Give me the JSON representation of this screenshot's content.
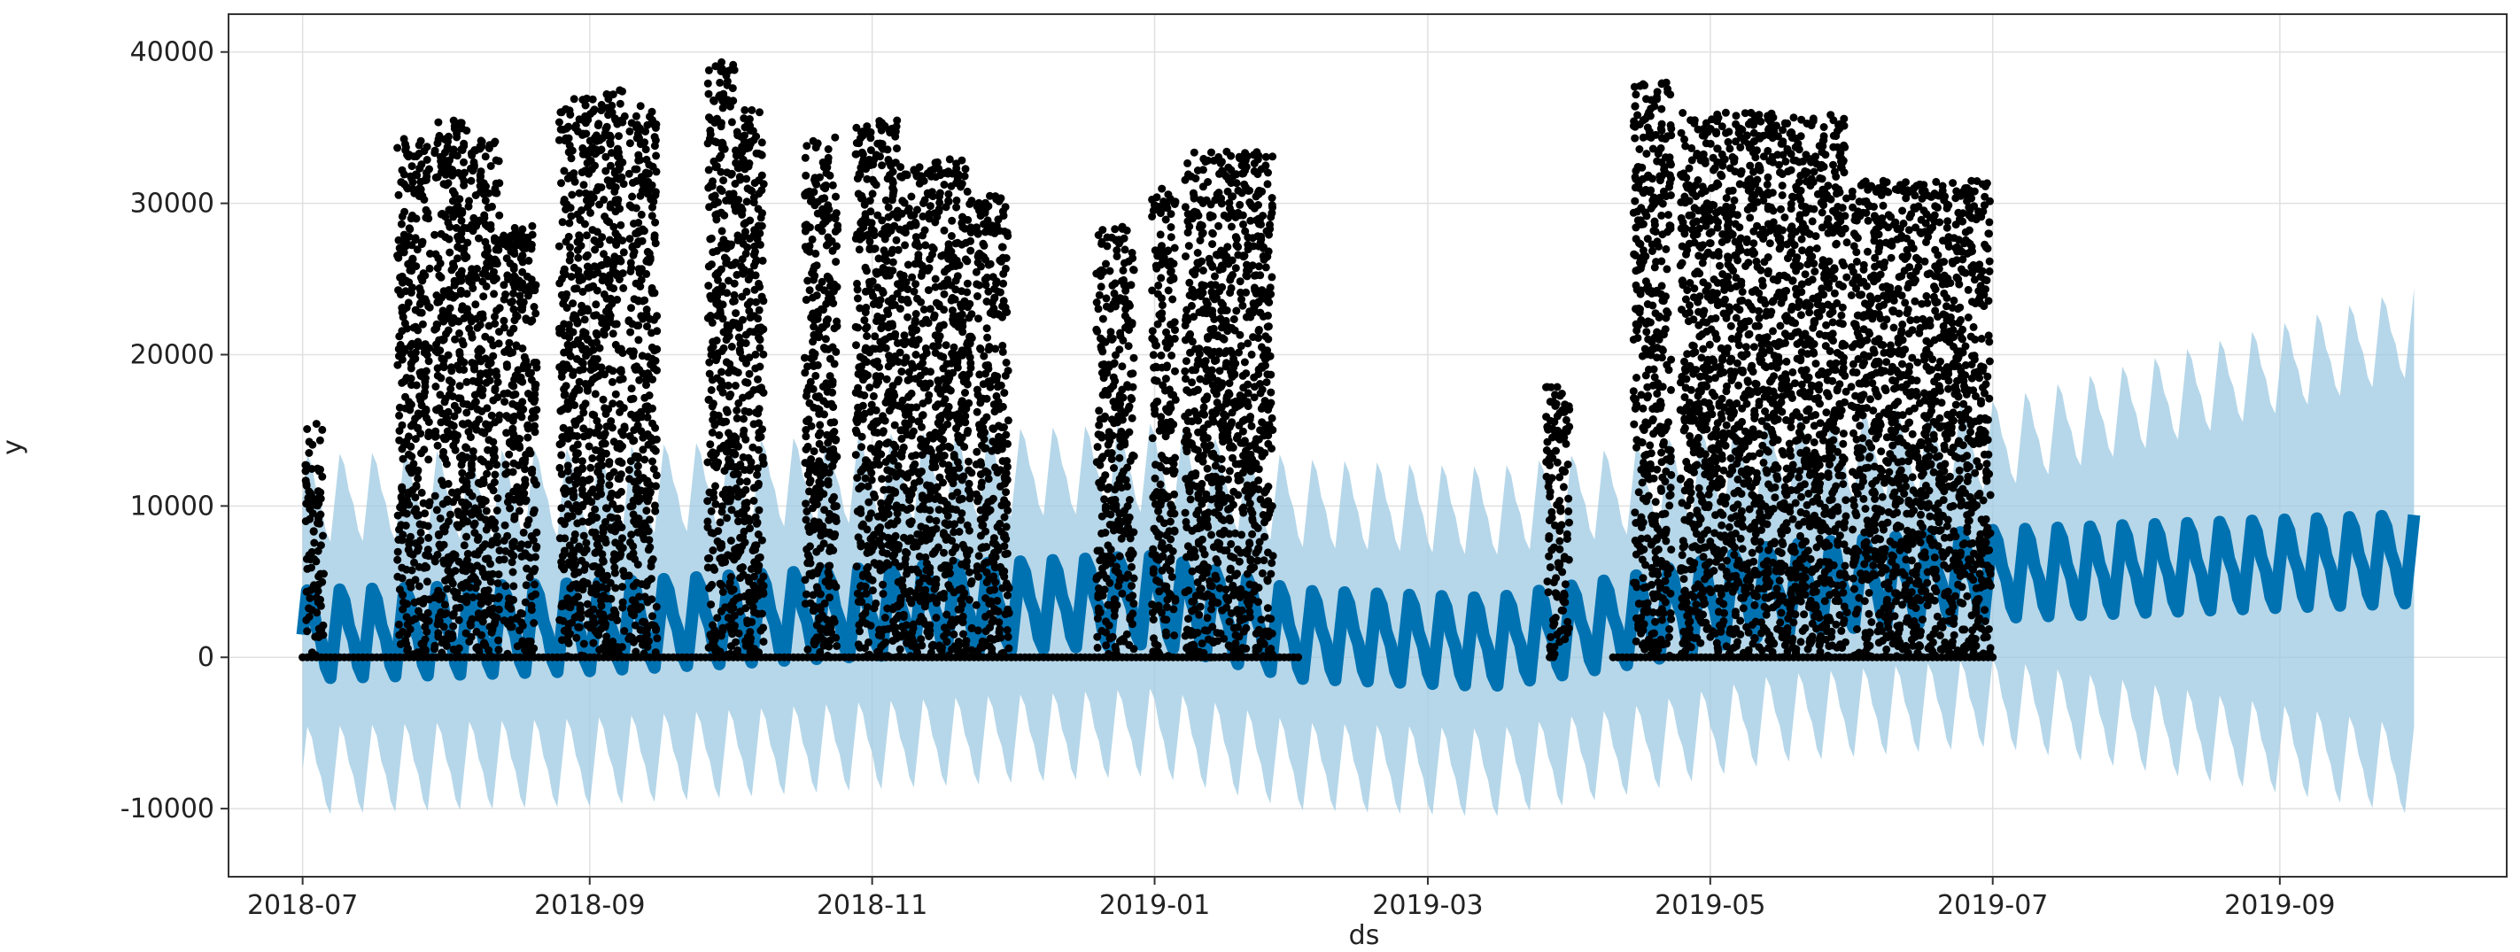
{
  "chart_data": {
    "type": "line",
    "xlabel": "ds",
    "ylabel": "y",
    "x_range": [
      "2018-06-15",
      "2019-10-20"
    ],
    "y_range": [
      -14500,
      42500
    ],
    "grid": true,
    "x_ticks": [
      {
        "date": "2018-07-01",
        "label": "2018-07"
      },
      {
        "date": "2018-09-01",
        "label": "2018-09"
      },
      {
        "date": "2018-11-01",
        "label": "2018-11"
      },
      {
        "date": "2019-01-01",
        "label": "2019-01"
      },
      {
        "date": "2019-03-01",
        "label": "2019-03"
      },
      {
        "date": "2019-05-01",
        "label": "2019-05"
      },
      {
        "date": "2019-07-01",
        "label": "2019-07"
      },
      {
        "date": "2019-09-01",
        "label": "2019-09"
      }
    ],
    "y_ticks": [
      {
        "value": 40000,
        "label": "40000"
      },
      {
        "value": 30000,
        "label": "30000"
      },
      {
        "value": 20000,
        "label": "20000"
      },
      {
        "value": 10000,
        "label": "10000"
      },
      {
        "value": 0,
        "label": "0"
      },
      {
        "value": -10000,
        "label": "-10000"
      }
    ],
    "colors": {
      "forecast": "#0072B2",
      "interval": "#9ecae1",
      "observed": "#000000",
      "grid": "#e0e0e0",
      "frame": "#333333"
    },
    "forecast_trend": [
      {
        "x": "2018-07-01",
        "y": 1500
      },
      {
        "x": "2018-09-01",
        "y": 2000
      },
      {
        "x": "2018-11-01",
        "y": 3000
      },
      {
        "x": "2019-01-01",
        "y": 3800
      },
      {
        "x": "2019-02-01",
        "y": 1500
      },
      {
        "x": "2019-03-15",
        "y": 1000
      },
      {
        "x": "2019-04-15",
        "y": 2500
      },
      {
        "x": "2019-05-15",
        "y": 4500
      },
      {
        "x": "2019-07-01",
        "y": 5500
      },
      {
        "x": "2019-09-30",
        "y": 6500
      }
    ],
    "forecast_amplitude": 3500,
    "interval_lower_offset": [
      {
        "x": "2018-07-01",
        "y": 9000
      },
      {
        "x": "2019-07-01",
        "y": 8500
      },
      {
        "x": "2019-09-30",
        "y": 14000
      }
    ],
    "interval_upper_offset": [
      {
        "x": "2018-07-01",
        "y": 9000
      },
      {
        "x": "2019-07-01",
        "y": 8500
      },
      {
        "x": "2019-09-30",
        "y": 15000
      }
    ],
    "observed_clusters": [
      {
        "start": "2018-07-02",
        "end": "2018-07-05",
        "max": 15500
      },
      {
        "start": "2018-07-22",
        "end": "2018-07-28",
        "max": 34500
      },
      {
        "start": "2018-07-30",
        "end": "2018-08-05",
        "max": 35500
      },
      {
        "start": "2018-08-06",
        "end": "2018-08-12",
        "max": 34500
      },
      {
        "start": "2018-08-14",
        "end": "2018-08-20",
        "max": 28500
      },
      {
        "start": "2018-08-26",
        "end": "2018-09-03",
        "max": 37000
      },
      {
        "start": "2018-09-04",
        "end": "2018-09-08",
        "max": 37500
      },
      {
        "start": "2018-09-10",
        "end": "2018-09-15",
        "max": 36500
      },
      {
        "start": "2018-09-27",
        "end": "2018-10-02",
        "max": 39500
      },
      {
        "start": "2018-10-03",
        "end": "2018-10-08",
        "max": 36500
      },
      {
        "start": "2018-10-18",
        "end": "2018-10-24",
        "max": 34500
      },
      {
        "start": "2018-10-29",
        "end": "2018-11-06",
        "max": 35500
      },
      {
        "start": "2018-11-07",
        "end": "2018-11-14",
        "max": 32500
      },
      {
        "start": "2018-11-15",
        "end": "2018-11-22",
        "max": 33000
      },
      {
        "start": "2018-11-24",
        "end": "2018-11-30",
        "max": 30500
      },
      {
        "start": "2018-12-20",
        "end": "2018-12-27",
        "max": 28500
      },
      {
        "start": "2019-01-01",
        "end": "2019-01-05",
        "max": 31000
      },
      {
        "start": "2019-01-08",
        "end": "2019-01-26",
        "max": 33500
      },
      {
        "start": "2019-03-27",
        "end": "2019-03-31",
        "max": 18000
      },
      {
        "start": "2019-04-15",
        "end": "2019-04-22",
        "max": 38000
      },
      {
        "start": "2019-04-25",
        "end": "2019-05-30",
        "max": 36000
      },
      {
        "start": "2019-06-01",
        "end": "2019-06-30",
        "max": 31500
      }
    ]
  }
}
